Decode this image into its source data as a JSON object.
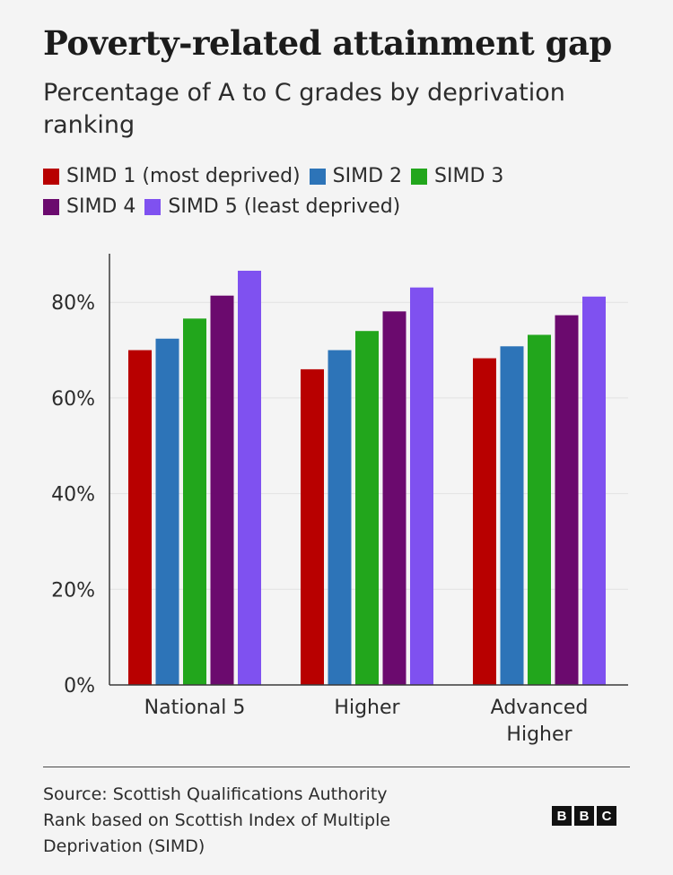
{
  "header": {
    "title": "Poverty-related attainment gap",
    "subtitle": "Percentage of A to C grades by deprivation ranking"
  },
  "legend": [
    {
      "label": "SIMD 1 (most deprived)",
      "color": "#b80000"
    },
    {
      "label": "SIMD 2",
      "color": "#2d74b8"
    },
    {
      "label": "SIMD 3",
      "color": "#22a61c"
    },
    {
      "label": "SIMD 4",
      "color": "#6b0a6e"
    },
    {
      "label": "SIMD 5 (least deprived)",
      "color": "#7f51f0"
    }
  ],
  "chart_data": {
    "type": "bar",
    "title": "Poverty-related attainment gap",
    "subtitle": "Percentage of A to C grades by deprivation ranking",
    "categories": [
      "National 5",
      "Higher",
      "Advanced Higher"
    ],
    "category_lines": [
      [
        "National 5"
      ],
      [
        "Higher"
      ],
      [
        "Advanced",
        "Higher"
      ]
    ],
    "series": [
      {
        "name": "SIMD 1 (most deprived)",
        "color": "#b80000",
        "values": [
          70,
          66,
          68.3
        ]
      },
      {
        "name": "SIMD 2",
        "color": "#2d74b8",
        "values": [
          72.4,
          70,
          70.8
        ]
      },
      {
        "name": "SIMD 3",
        "color": "#22a61c",
        "values": [
          76.6,
          74,
          73.2
        ]
      },
      {
        "name": "SIMD 4",
        "color": "#6b0a6e",
        "values": [
          81.4,
          78.1,
          77.3
        ]
      },
      {
        "name": "SIMD 5 (least deprived)",
        "color": "#7f51f0",
        "values": [
          86.6,
          83.1,
          81.2
        ]
      }
    ],
    "ylim": [
      0,
      90
    ],
    "yticks": [
      0,
      20,
      40,
      60,
      80
    ],
    "ytick_labels": [
      "0%",
      "20%",
      "40%",
      "60%",
      "80%"
    ],
    "xlabel": "",
    "ylabel": "",
    "grid": true
  },
  "footer": {
    "source_lines": [
      "Source: Scottish Qualifications Authority",
      "Rank based on Scottish Index of Multiple",
      "Deprivation (SIMD)"
    ],
    "logo_letters": [
      "B",
      "B",
      "C"
    ]
  }
}
